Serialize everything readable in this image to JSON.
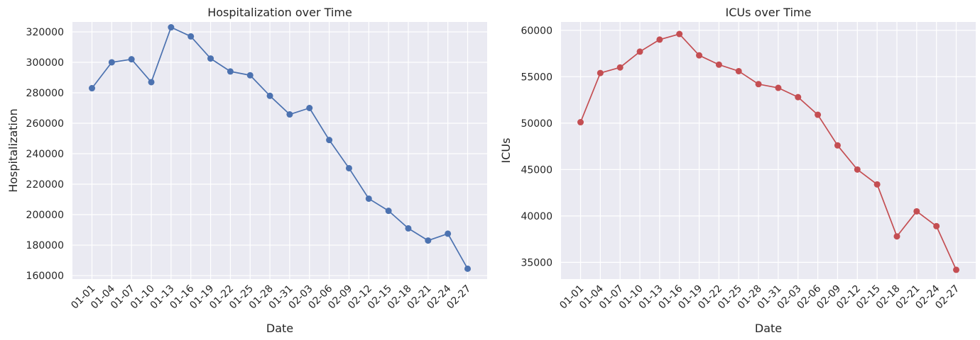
{
  "chart_data": [
    {
      "type": "line",
      "title": "Hospitalization over Time",
      "xlabel": "Date",
      "ylabel": "Hospitalization",
      "categories": [
        "01-01",
        "01-04",
        "01-07",
        "01-10",
        "01-13",
        "01-16",
        "01-19",
        "01-22",
        "01-25",
        "01-28",
        "01-31",
        "02-03",
        "02-06",
        "02-09",
        "02-12",
        "02-15",
        "02-18",
        "02-21",
        "02-24",
        "02-27"
      ],
      "yticks": [
        160000,
        180000,
        200000,
        220000,
        240000,
        260000,
        280000,
        300000,
        320000
      ],
      "ylim": [
        157700,
        326500
      ],
      "color": "#4c72b0",
      "grid": true,
      "series": [
        {
          "values": [
            283000,
            300000,
            302000,
            287000,
            323000,
            317000,
            302500,
            294000,
            291500,
            278000,
            265800,
            270000,
            249000,
            230500,
            210500,
            202500,
            191000,
            183000,
            187500,
            164500
          ]
        }
      ]
    },
    {
      "type": "line",
      "title": "ICUs over Time",
      "xlabel": "Date",
      "ylabel": "ICUs",
      "categories": [
        "01-01",
        "01-04",
        "01-07",
        "01-10",
        "01-13",
        "01-16",
        "01-19",
        "01-22",
        "01-25",
        "01-28",
        "01-31",
        "02-03",
        "02-06",
        "02-09",
        "02-12",
        "02-15",
        "02-18",
        "02-21",
        "02-24",
        "02-27"
      ],
      "yticks": [
        35000,
        40000,
        45000,
        50000,
        55000,
        60000
      ],
      "ylim": [
        33200,
        60900
      ],
      "color": "#c44e52",
      "grid": true,
      "series": [
        {
          "values": [
            50100,
            55400,
            56000,
            57700,
            59000,
            59600,
            57300,
            56300,
            55600,
            54200,
            53800,
            52800,
            50900,
            47600,
            45000,
            43400,
            37800,
            40500,
            38900,
            34200
          ]
        }
      ]
    }
  ]
}
